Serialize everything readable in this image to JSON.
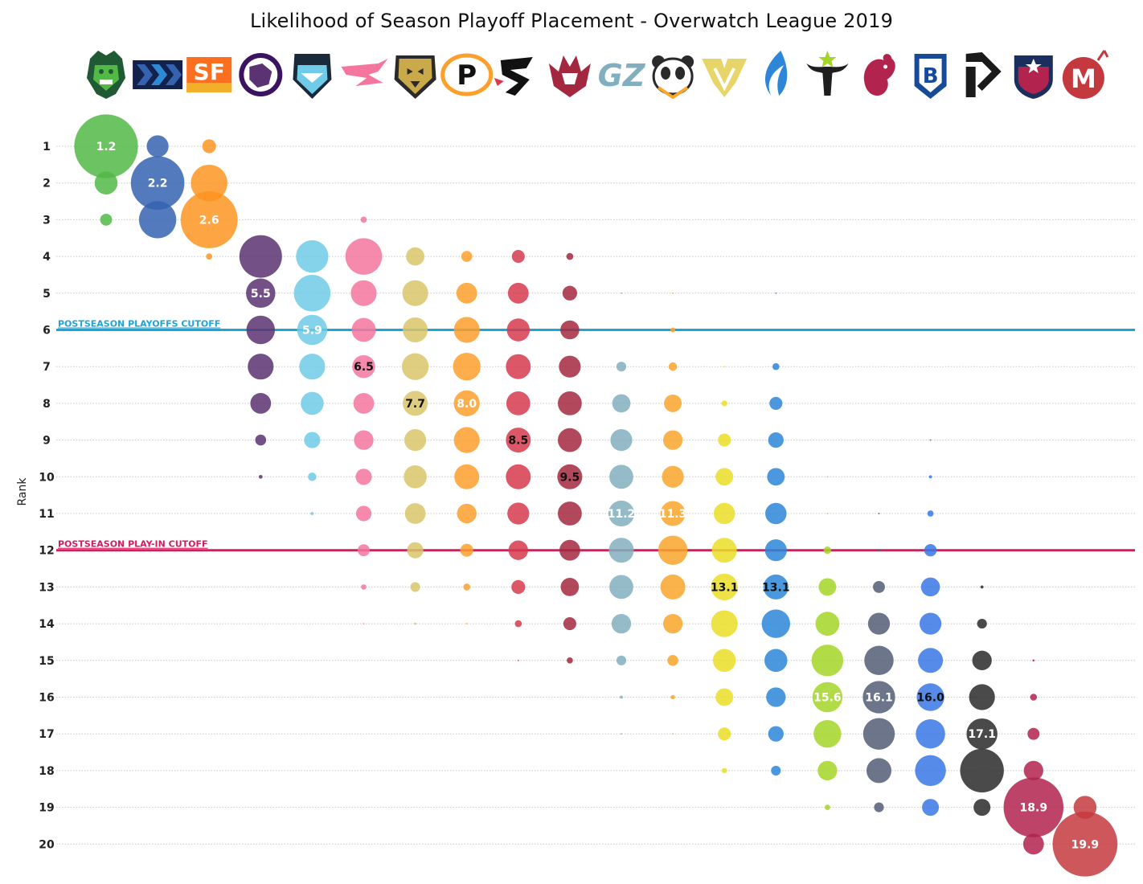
{
  "chart_data": {
    "type": "scatter",
    "title": "Likelihood of Season Playoff Placement - Overwatch League 2019",
    "ylabel": "Rank",
    "ranks": [
      1,
      2,
      3,
      4,
      5,
      6,
      7,
      8,
      9,
      10,
      11,
      12,
      13,
      14,
      15,
      16,
      17,
      18,
      19,
      20
    ],
    "cutoffs": [
      {
        "label": "POSTSEASON PLAYOFFS CUTOFF",
        "rank": 6,
        "color": "#1aa6d9"
      },
      {
        "label": "POSTSEASON PLAY-IN CUTOFF",
        "rank": 12,
        "color": "#d81b60"
      }
    ],
    "series": [
      {
        "logo": "vancouver-titans",
        "color": "#52b947",
        "mean": "1.2",
        "mean_rank": 1,
        "label_color": "#ffffff",
        "probs": {
          "1": 85,
          "2": 11,
          "3": 3
        }
      },
      {
        "logo": "new-york-excelsior",
        "color": "#3563b0",
        "mean": "2.2",
        "mean_rank": 2,
        "label_color": "#ffffff",
        "probs": {
          "1": 10,
          "2": 60,
          "3": 29
        }
      },
      {
        "logo": "san-francisco-shock",
        "color": "#fd9422",
        "mean": "2.6",
        "mean_rank": 3,
        "label_color": "#ffffff",
        "probs": {
          "1": 4,
          "2": 28,
          "3": 68,
          "4": 0.8
        }
      },
      {
        "logo": "los-angeles-gladiators",
        "color": "#5b3272",
        "mean": "5.5",
        "mean_rank": 5,
        "label_color": "#ffffff",
        "probs": {
          "4": 38,
          "5": 18,
          "6": 17,
          "7": 14,
          "8": 9,
          "9": 2.5,
          "10": 0.3
        }
      },
      {
        "logo": "london-spitfire",
        "color": "#6fcbe8",
        "mean": "5.9",
        "mean_rank": 6,
        "label_color": "#ffffff",
        "probs": {
          "4": 22,
          "5": 28,
          "6": 19,
          "7": 14,
          "8": 11,
          "9": 5.5,
          "10": 1.5,
          "11": 0.2
        }
      },
      {
        "logo": "shanghai-hunters",
        "color": "#f4769e",
        "mean": "6.5",
        "mean_rank": 7,
        "label_color": "#111111",
        "probs": {
          "3": 0.8,
          "4": 28,
          "5": 14,
          "6": 12,
          "7": 11,
          "8": 9,
          "9": 8,
          "10": 5.5,
          "11": 5,
          "12": 3,
          "13": 0.6,
          "14": 0.03
        }
      },
      {
        "logo": "seoul-dynasty",
        "color": "#d9c46a",
        "mean": "7.7",
        "mean_rank": 8,
        "label_color": "#111111",
        "probs": {
          "4": 7,
          "5": 14,
          "6": 13,
          "7": 15,
          "8": 13,
          "9": 10,
          "10": 11,
          "11": 9,
          "12": 5.5,
          "13": 2,
          "14": 0.1
        }
      },
      {
        "logo": "philadelphia-fusion",
        "color": "#fd9f2c",
        "mean": "8.0",
        "mean_rank": 8,
        "label_color": "#ffffff",
        "probs": {
          "4": 2.5,
          "5": 9,
          "6": 14,
          "7": 16,
          "8": 14,
          "9": 14,
          "10": 13,
          "11": 8,
          "12": 3.5,
          "13": 1,
          "14": 0.05
        }
      },
      {
        "logo": "shenzhen-spark",
        "color": "#d63a4e",
        "mean": "8.5",
        "mean_rank": 9,
        "label_color": "#111111",
        "probs": {
          "4": 3.5,
          "5": 9,
          "6": 11,
          "7": 13,
          "8": 12,
          "9": 13,
          "10": 13,
          "11": 10,
          "12": 8,
          "13": 4,
          "14": 1,
          "15": 0.05
        }
      },
      {
        "logo": "atlanta-reign",
        "color": "#a3283f",
        "mean": "9.5",
        "mean_rank": 10,
        "label_color": "#111111",
        "probs": {
          "4": 1,
          "5": 4.5,
          "6": 7.5,
          "7": 10,
          "8": 12,
          "9": 12,
          "10": 13,
          "11": 12,
          "12": 9,
          "13": 7,
          "14": 3.5,
          "15": 0.8
        }
      },
      {
        "logo": "guangzhou-charge",
        "color": "#82afc0",
        "mean": "11.2",
        "mean_rank": 11,
        "label_color": "#ffffff",
        "probs": {
          "5": 0.05,
          "7": 2,
          "8": 7,
          "9": 10,
          "10": 12,
          "11": 14,
          "12": 13,
          "13": 12,
          "14": 8,
          "15": 2,
          "16": 0.2,
          "17": 0.02
        }
      },
      {
        "logo": "chengdu-hunters",
        "color": "#f9a62c",
        "mean": "11.3",
        "mean_rank": 11,
        "label_color": "#ffffff",
        "probs": {
          "5": 0.03,
          "6": 0.5,
          "7": 1.5,
          "8": 6.5,
          "9": 8,
          "10": 10,
          "11": 13,
          "12": 18,
          "13": 13,
          "14": 8,
          "15": 2.5,
          "16": 0.4,
          "17": 0.05
        }
      },
      {
        "logo": "los-angeles-valiant",
        "color": "#ebde26",
        "mean": "13.1",
        "mean_rank": 13,
        "label_color": "#111111",
        "probs": {
          "7": 0.05,
          "8": 0.7,
          "9": 3.5,
          "10": 6.5,
          "11": 9.5,
          "12": 13,
          "13": 15,
          "14": 15,
          "15": 11,
          "16": 6.5,
          "17": 3.5,
          "18": 0.6
        }
      },
      {
        "logo": "dallas-fuel",
        "color": "#2d86d8",
        "mean": "13.1",
        "mean_rank": 13,
        "label_color": "#111111",
        "probs": {
          "5": 0.02,
          "7": 1,
          "8": 3.5,
          "9": 5,
          "10": 6.5,
          "11": 9.5,
          "12": 10,
          "13": 13,
          "14": 17,
          "15": 11,
          "16": 8,
          "17": 5,
          "18": 2
        }
      },
      {
        "logo": "houston-outlaws",
        "color": "#a3d627",
        "mean": "15.6",
        "mean_rank": 16,
        "label_color": "#ffffff",
        "probs": {
          "10": 0.05,
          "11": 0.03,
          "12": 1.2,
          "13": 6.5,
          "14": 12,
          "15": 21,
          "16": 19,
          "17": 16,
          "18": 8,
          "19": 0.6
        }
      },
      {
        "logo": "paris-eternal",
        "color": "#525d75",
        "mean": "16.1",
        "mean_rank": 16,
        "label_color": "#ffffff",
        "probs": {
          "11": 0.05,
          "12": 0.1,
          "13": 3,
          "14": 10,
          "15": 18,
          "16": 22,
          "17": 21,
          "18": 13,
          "19": 2
        }
      },
      {
        "logo": "boston-uprising",
        "color": "#3a77e6",
        "mean": "16.0",
        "mean_rank": 16,
        "label_color": "#111111",
        "probs": {
          "9": 0.05,
          "10": 0.2,
          "11": 0.8,
          "12": 3.2,
          "13": 7.5,
          "14": 10,
          "15": 13,
          "16": 16,
          "17": 18,
          "18": 20,
          "19": 6
        }
      },
      {
        "logo": "toronto-defiant",
        "color": "#2a2a2a",
        "mean": "17.1",
        "mean_rank": 17,
        "label_color": "#ffffff",
        "probs": {
          "13": 0.2,
          "14": 2,
          "15": 8,
          "16": 14,
          "17": 20,
          "18": 40,
          "19": 6
        }
      },
      {
        "logo": "washington-justice",
        "color": "#b2234d",
        "mean": "18.9",
        "mean_rank": 19,
        "label_color": "#ffffff",
        "probs": {
          "15": 0.1,
          "16": 1,
          "17": 3,
          "18": 8,
          "19": 75,
          "20": 9
        }
      },
      {
        "logo": "florida-mayhem",
        "color": "#c4393e",
        "mean": "19.9",
        "mean_rank": 20,
        "label_color": "#ffffff",
        "probs": {
          "19": 11,
          "20": 88
        }
      }
    ]
  }
}
